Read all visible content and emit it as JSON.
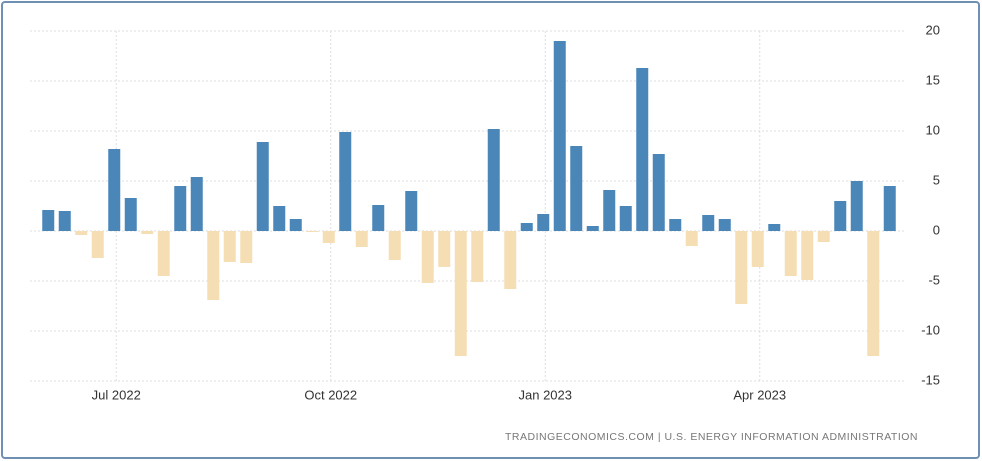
{
  "chart_data": {
    "type": "bar",
    "categories": [
      null,
      null,
      null,
      null,
      "Jul 2022",
      null,
      null,
      null,
      null,
      null,
      null,
      null,
      null,
      null,
      null,
      null,
      null,
      "Oct 2022",
      null,
      null,
      null,
      null,
      null,
      null,
      null,
      null,
      null,
      null,
      null,
      null,
      "Jan 2023",
      null,
      null,
      null,
      null,
      null,
      null,
      null,
      null,
      null,
      null,
      null,
      null,
      "Apr 2023",
      null,
      null,
      null,
      null,
      null,
      null,
      null,
      null
    ],
    "values": [
      2.1,
      2.0,
      -0.4,
      -2.7,
      8.2,
      3.3,
      -0.3,
      -4.5,
      4.5,
      5.4,
      -6.9,
      -3.1,
      -3.2,
      8.9,
      2.5,
      1.2,
      -0.1,
      -1.2,
      9.9,
      -1.6,
      2.6,
      -2.9,
      4.0,
      -5.2,
      -3.6,
      -12.5,
      -5.1,
      10.2,
      -5.8,
      0.8,
      1.7,
      19.0,
      8.5,
      0.5,
      4.1,
      2.5,
      16.3,
      7.7,
      1.2,
      -1.5,
      1.6,
      1.2,
      -7.3,
      -3.6,
      0.7,
      -4.5,
      -4.9,
      -1.1,
      3.0,
      5.0,
      -12.5,
      4.5
    ],
    "colors": {
      "positive": "#4a86b8",
      "negative": "#f5deb3"
    },
    "ylim": [
      -15,
      20
    ],
    "yticks": [
      -15,
      -10,
      -5,
      0,
      5,
      10,
      15,
      20
    ],
    "grid": true,
    "source": "TRADINGECONOMICS.COM | U.S. ENERGY INFORMATION ADMINISTRATION"
  }
}
